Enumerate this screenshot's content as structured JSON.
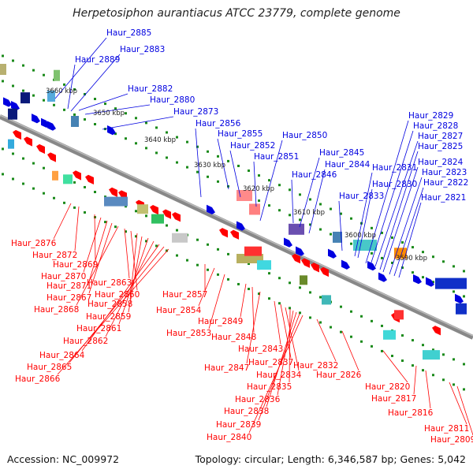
{
  "title": "Herpetosiphon aurantiacus ATCC 23779, complete genome",
  "footer": {
    "accession": "Accession: NC_009972",
    "topology": "Topology: circular; Length: 6,346,587 bp; Genes: 5,042"
  },
  "colors": {
    "forward": "#0000e0",
    "reverse": "#ff0000",
    "backbone": "#888888",
    "marker": "#1a8a1a"
  },
  "scale_ticks": [
    "3660 kbp",
    "3650 kbp",
    "3640 kbp",
    "3630 kbp",
    "3620 kbp",
    "3610 kbp",
    "3600 kbp",
    "3590 kbp"
  ],
  "upper_labels": [
    "Haur_2885",
    "Haur_2889",
    "Haur_2883",
    "Haur_2882",
    "Haur_2880",
    "Haur_2873",
    "Haur_2856",
    "Haur_2855",
    "Haur_2852",
    "Haur_2851",
    "Haur_2850",
    "Haur_2846",
    "Haur_2845",
    "Haur_2844",
    "Haur_2833",
    "Haur_2831",
    "Haur_2830",
    "Haur_2829",
    "Haur_2828",
    "Haur_2827",
    "Haur_2825",
    "Haur_2824",
    "Haur_2823",
    "Haur_2822",
    "Haur_2821"
  ],
  "lower_labels": [
    "Haur_2876",
    "Haur_2872",
    "Haur_2869",
    "Haur_2870",
    "Haur_2871",
    "Haur_2867",
    "Haur_2868",
    "Haur_2863",
    "Haur_2860",
    "Haur_2858",
    "Haur_2859",
    "Haur_2861",
    "Haur_2862",
    "Haur_2864",
    "Haur_2865",
    "Haur_2866",
    "Haur_2857",
    "Haur_2854",
    "Haur_2853",
    "Haur_2849",
    "Haur_2848",
    "Haur_2847",
    "Haur_2843",
    "Haur_2837",
    "Haur_2834",
    "Haur_2835",
    "Haur_2836",
    "Haur_2838",
    "Haur_2839",
    "Haur_2840",
    "Haur_2832",
    "Haur_2826",
    "Haur_2820",
    "Haur_2817",
    "Haur_2816",
    "Haur_2811",
    "Haur_2809"
  ]
}
